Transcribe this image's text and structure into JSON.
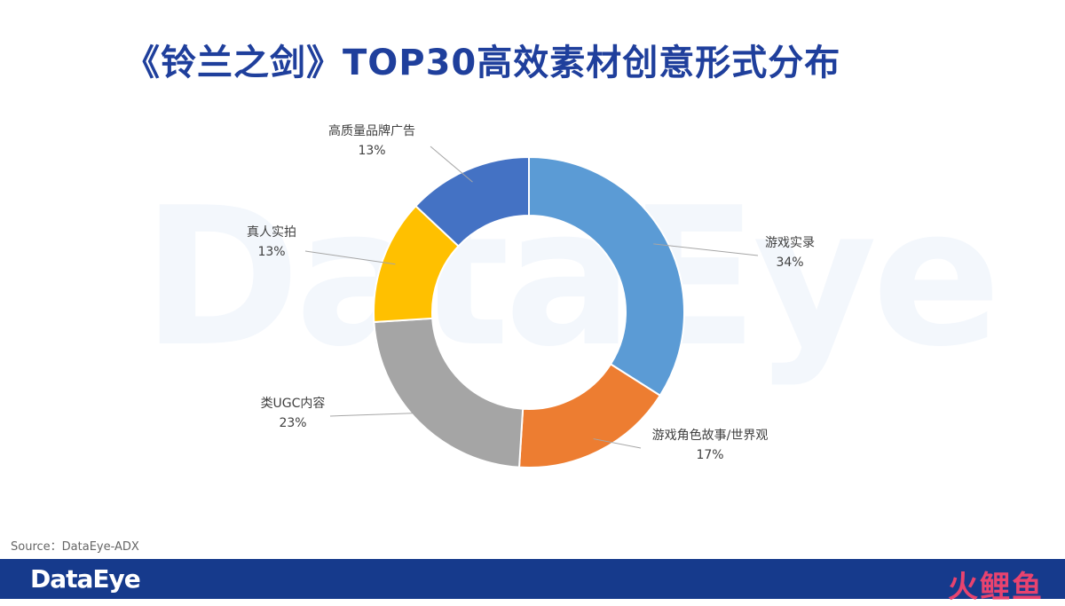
{
  "title": "《铃兰之剑》TOP30高效素材创意形式分布",
  "watermark": "DataEye",
  "source": "Source：DataEye-ADX",
  "footer": {
    "logo": "DataEye",
    "brand": "火鲤鱼"
  },
  "chart_data": {
    "type": "pie",
    "title": "《铃兰之剑》TOP30高效素材创意形式分布",
    "donut": true,
    "start": "top, clockwise",
    "slices": [
      {
        "label": "游戏实录",
        "value": 34,
        "value_label": "34%",
        "color": "#5b9bd5"
      },
      {
        "label": "游戏角色故事/世界观",
        "value": 17,
        "value_label": "17%",
        "color": "#ed7d31"
      },
      {
        "label": "类UGC内容",
        "value": 23,
        "value_label": "23%",
        "color": "#a5a5a5"
      },
      {
        "label": "真人实拍",
        "value": 13,
        "value_label": "13%",
        "color": "#ffc000"
      },
      {
        "label": "高质量品牌广告",
        "value": 13,
        "value_label": "13%",
        "color": "#4472c4"
      }
    ]
  }
}
